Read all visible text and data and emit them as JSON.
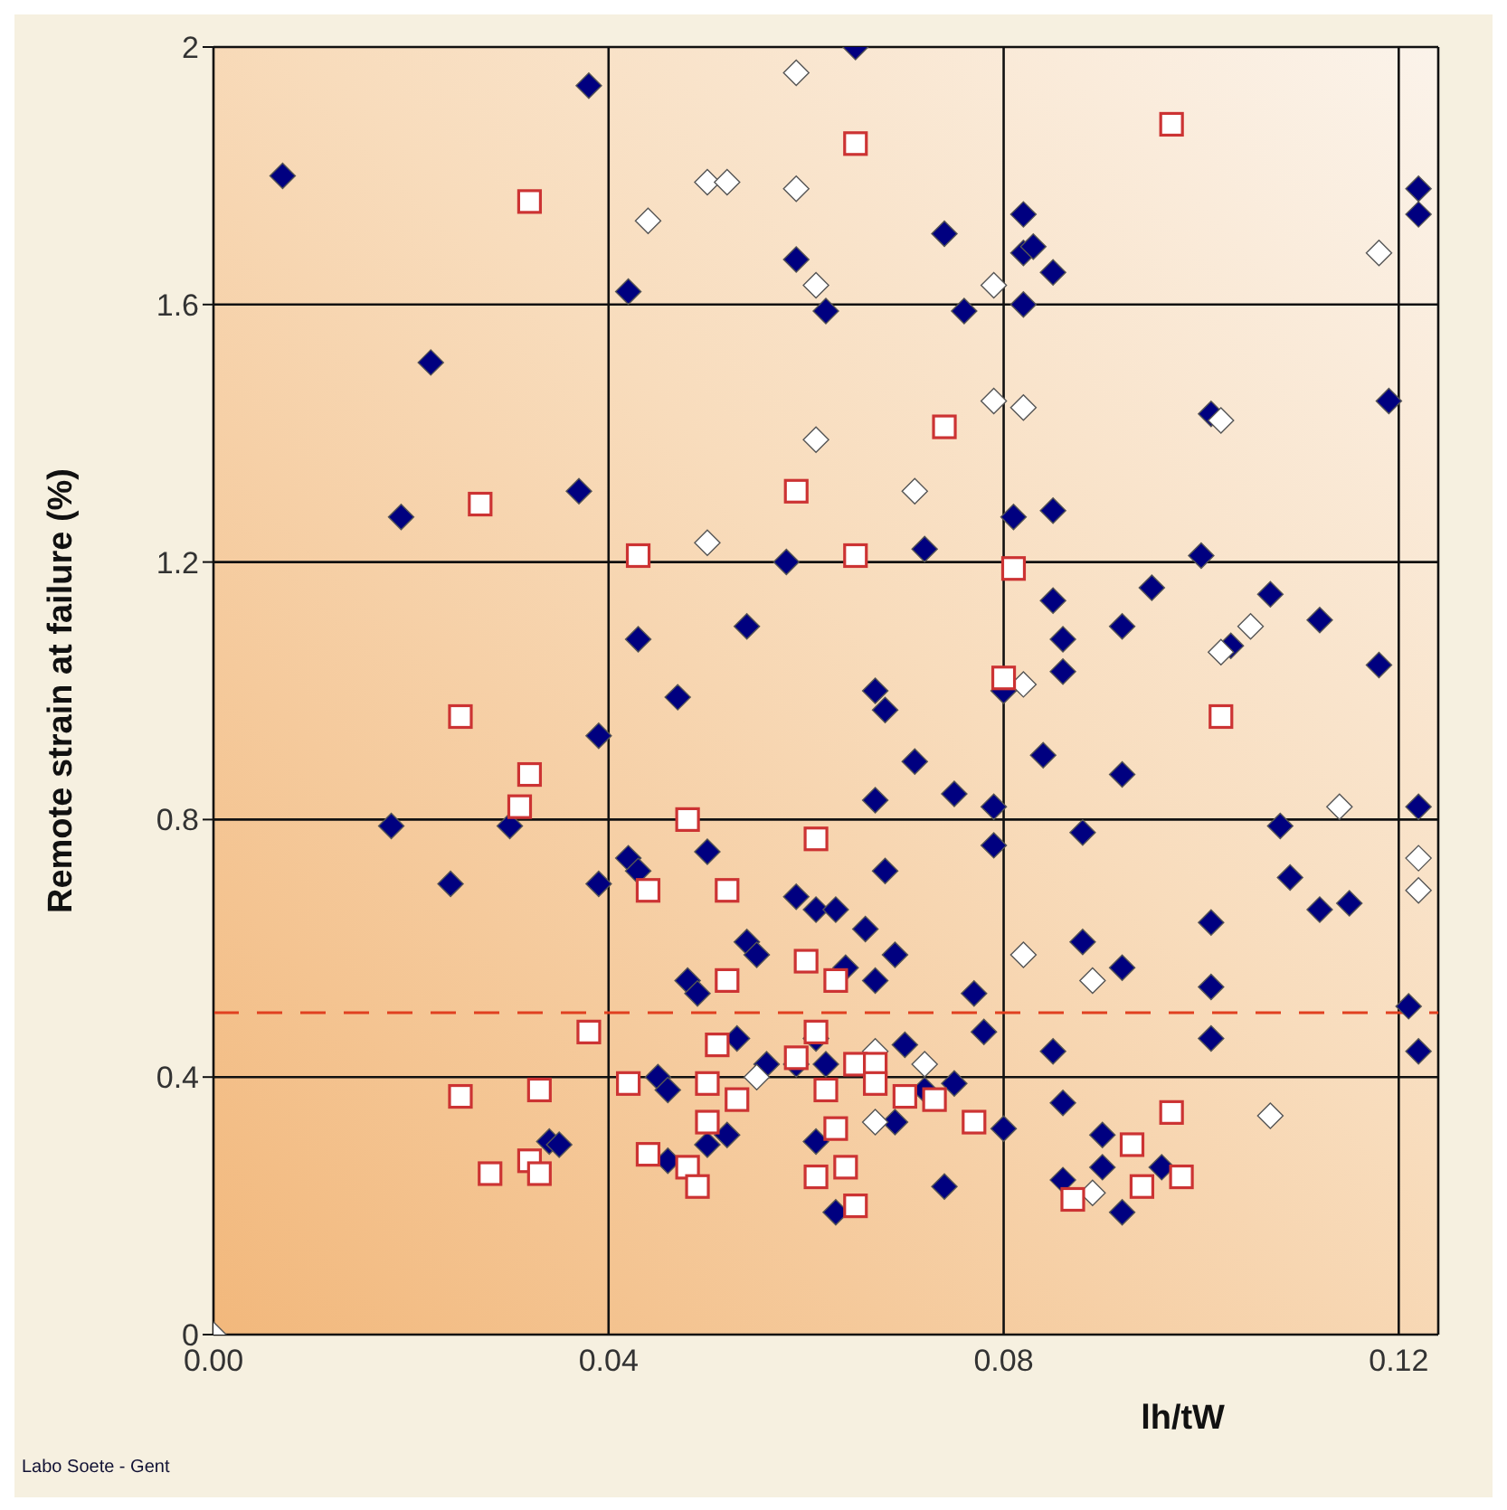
{
  "chart_data": {
    "type": "scatter",
    "xlabel": "lh/tW",
    "ylabel": "Remote strain at failure (%)",
    "xlim": [
      0,
      0.124
    ],
    "ylim": [
      0,
      2
    ],
    "xticks": [
      {
        "value": 0,
        "label": "0.00"
      },
      {
        "value": 0.04,
        "label": "0.04"
      },
      {
        "value": 0.08,
        "label": "0.08"
      },
      {
        "value": 0.12,
        "label": "0.12"
      }
    ],
    "yticks": [
      0,
      0.4,
      0.8,
      1.2,
      1.6,
      2
    ],
    "grid": true,
    "ref_lines": [
      {
        "axis": "y",
        "value": 0.5,
        "color": "#e04020",
        "line_style": "dashed"
      }
    ],
    "annotations": [
      "Labo Soete - Gent"
    ],
    "series": [
      {
        "color": "#000080",
        "marker": "diamond",
        "x": [
          0.038,
          0.007,
          0.022,
          0.019,
          0.037,
          0.065,
          0.074,
          0.082,
          0.082,
          0.059,
          0.042,
          0.062,
          0.076,
          0.082,
          0.058,
          0.072,
          0.081,
          0.043,
          0.054,
          0.047,
          0.067,
          0.08,
          0.083,
          0.085,
          0.119,
          0.101,
          0.085,
          0.1,
          0.095,
          0.085,
          0.107,
          0.086,
          0.092,
          0.112,
          0.103,
          0.086,
          0.118,
          0.122,
          0.122,
          0.039,
          0.018,
          0.03,
          0.024,
          0.039,
          0.068,
          0.071,
          0.067,
          0.075,
          0.079,
          0.079,
          0.042,
          0.043,
          0.05,
          0.068,
          0.059,
          0.061,
          0.063,
          0.066,
          0.054,
          0.055,
          0.069,
          0.064,
          0.067,
          0.048,
          0.049,
          0.077,
          0.078,
          0.053,
          0.061,
          0.07,
          0.056,
          0.059,
          0.062,
          0.045,
          0.046,
          0.072,
          0.075,
          0.052,
          0.05,
          0.069,
          0.08,
          0.046,
          0.061,
          0.064,
          0.074,
          0.063,
          0.084,
          0.092,
          0.088,
          0.108,
          0.109,
          0.112,
          0.115,
          0.101,
          0.088,
          0.092,
          0.101,
          0.121,
          0.085,
          0.101,
          0.122,
          0.122,
          0.086,
          0.09,
          0.09,
          0.096,
          0.086,
          0.092,
          0.034,
          0.035
        ],
        "values": [
          1.94,
          1.8,
          1.51,
          1.27,
          1.31,
          2.0,
          1.71,
          1.74,
          1.68,
          1.67,
          1.62,
          1.59,
          1.59,
          1.6,
          1.2,
          1.22,
          1.27,
          1.08,
          1.1,
          0.99,
          1.0,
          1.0,
          1.69,
          1.65,
          1.45,
          1.43,
          1.28,
          1.21,
          1.16,
          1.14,
          1.15,
          1.08,
          1.1,
          1.11,
          1.07,
          1.03,
          1.04,
          1.78,
          1.74,
          0.93,
          0.79,
          0.79,
          0.7,
          0.7,
          0.97,
          0.89,
          0.83,
          0.84,
          0.82,
          0.76,
          0.74,
          0.72,
          0.75,
          0.72,
          0.68,
          0.66,
          0.66,
          0.63,
          0.61,
          0.59,
          0.59,
          0.57,
          0.55,
          0.55,
          0.53,
          0.53,
          0.47,
          0.46,
          0.46,
          0.45,
          0.42,
          0.42,
          0.42,
          0.4,
          0.38,
          0.38,
          0.39,
          0.31,
          0.295,
          0.33,
          0.32,
          0.27,
          0.3,
          null,
          0.23,
          0.19,
          0.9,
          0.87,
          0.78,
          0.79,
          0.71,
          0.66,
          0.67,
          0.64,
          0.61,
          0.57,
          0.54,
          0.51,
          0.44,
          0.46,
          0.44,
          0.82,
          0.36,
          0.31,
          0.26,
          0.26,
          0.24,
          0.19,
          0.3,
          0.295
        ]
      },
      {
        "color": "#ffffff",
        "marker": "diamond",
        "x": [
          0.059,
          0.05,
          0.052,
          0.059,
          0.044,
          0.061,
          0.079,
          0.079,
          0.082,
          0.061,
          0.071,
          0.05,
          0.082,
          0.118,
          0.102,
          0.105,
          0.102,
          0.114,
          0.082,
          0.067,
          0.072,
          0.055,
          0.067,
          0.089,
          0.122,
          0.122,
          0.107,
          0.089,
          0
        ],
        "values": [
          1.96,
          1.79,
          1.79,
          1.78,
          1.73,
          1.63,
          1.63,
          1.45,
          1.44,
          1.39,
          1.31,
          1.23,
          1.01,
          1.68,
          1.42,
          1.1,
          1.06,
          0.82,
          0.59,
          0.44,
          0.42,
          0.4,
          0.33,
          0.55,
          0.74,
          0.69,
          0.34,
          0.22,
          0
        ]
      },
      {
        "color": "#cc3333",
        "marker": "square",
        "x": [
          0.032,
          0.065,
          0.097,
          0.074,
          0.059,
          0.027,
          0.043,
          0.065,
          0.081,
          0.025,
          0.032,
          0.031,
          0.048,
          0.061,
          0.044,
          0.052,
          0.038,
          0.06,
          0.063,
          0.052,
          0.102,
          0.025,
          0.033,
          0.051,
          0.061,
          0.059,
          0.065,
          0.067,
          0.042,
          0.05,
          0.067,
          0.07,
          0.073,
          0.062,
          0.053,
          0.05,
          0.063,
          0.077,
          0.044,
          0.048,
          0.049,
          0.064,
          0.061,
          0.065,
          0.028,
          0.032,
          0.033,
          0.097,
          0.093,
          0.098,
          0.087,
          0.094,
          0.08
        ],
        "values": [
          1.76,
          1.85,
          1.88,
          1.41,
          1.31,
          1.29,
          1.21,
          1.21,
          1.19,
          0.96,
          0.87,
          0.82,
          0.8,
          0.77,
          0.69,
          0.69,
          0.47,
          0.58,
          0.55,
          0.55,
          0.96,
          0.37,
          0.38,
          0.45,
          0.47,
          0.43,
          0.42,
          0.42,
          0.39,
          0.39,
          0.39,
          0.37,
          0.365,
          0.38,
          0.365,
          0.33,
          0.32,
          0.33,
          0.28,
          0.26,
          0.23,
          0.26,
          0.245,
          0.2,
          0.25,
          0.27,
          0.25,
          0.345,
          0.295,
          0.245,
          0.21,
          0.23,
          1.02
        ]
      }
    ]
  }
}
